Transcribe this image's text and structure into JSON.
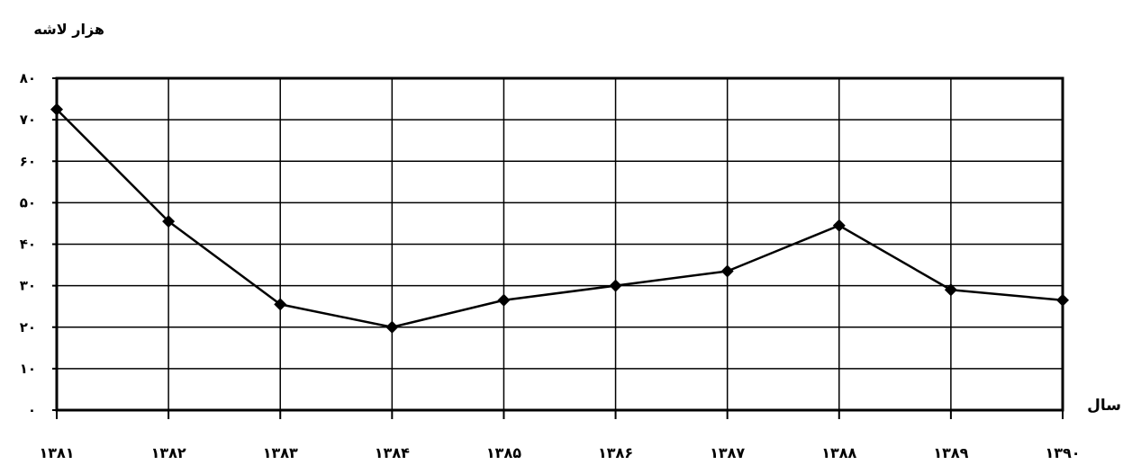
{
  "chart_data": {
    "type": "line",
    "title": "",
    "ylabel": "هزار لاشه",
    "xlabel": "سال",
    "categories": [
      "۱۳۸۱",
      "۱۳۸۲",
      "۱۳۸۳",
      "۱۳۸۴",
      "۱۳۸۵",
      "۱۳۸۶",
      "۱۳۸۷",
      "۱۳۸۸",
      "۱۳۸۹",
      "۱۳۹۰"
    ],
    "values": [
      72.5,
      45.5,
      25.5,
      20,
      26.5,
      30,
      33.5,
      44.5,
      29,
      26.5
    ],
    "ylim": [
      0,
      80
    ],
    "yticks": [
      0,
      10,
      20,
      30,
      40,
      50,
      60,
      70,
      80
    ],
    "ytick_labels": [
      "۰",
      "۱۰",
      "۲۰",
      "۳۰",
      "۴۰",
      "۵۰",
      "۶۰",
      "۷۰",
      "۸۰"
    ],
    "grid": true,
    "marker": "diamond",
    "line_color": "#000000"
  }
}
